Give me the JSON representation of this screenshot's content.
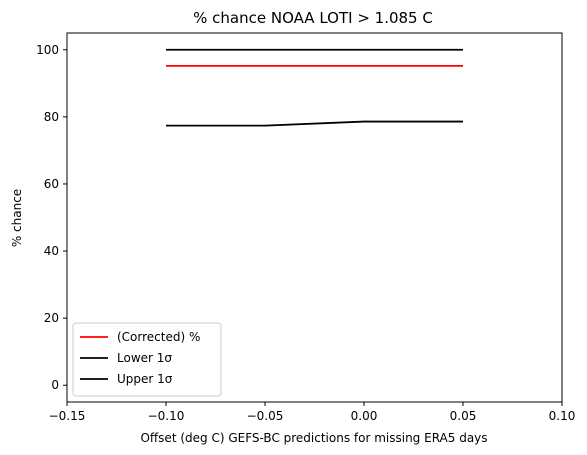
{
  "chart_data": {
    "type": "line",
    "title": "% chance NOAA LOTI > 1.085 C",
    "xlabel": "Offset (deg C) GEFS-BC predictions for missing ERA5 days",
    "ylabel": "% chance",
    "xlim": [
      -0.15,
      0.1
    ],
    "ylim": [
      -5,
      105
    ],
    "xticks": [
      -0.15,
      -0.1,
      -0.05,
      0.0,
      0.05,
      0.1
    ],
    "xtick_labels": [
      "−0.15",
      "−0.10",
      "−0.05",
      "0.00",
      "0.05",
      "0.10"
    ],
    "yticks": [
      0,
      20,
      40,
      60,
      80,
      100
    ],
    "ytick_labels": [
      "0",
      "20",
      "40",
      "60",
      "80",
      "100"
    ],
    "grid": false,
    "legend_position": "lower-left",
    "x": [
      -0.1,
      -0.05,
      0.0,
      0.05
    ],
    "series": [
      {
        "name": "(Corrected) %",
        "color": "#ff0000",
        "values": [
          95.2,
          95.2,
          95.2,
          95.2
        ]
      },
      {
        "name": "Lower 1σ",
        "color": "#000000",
        "values": [
          77.4,
          77.4,
          78.6,
          78.6
        ]
      },
      {
        "name": "Upper 1σ",
        "color": "#000000",
        "values": [
          100,
          100,
          100,
          100
        ]
      }
    ]
  }
}
